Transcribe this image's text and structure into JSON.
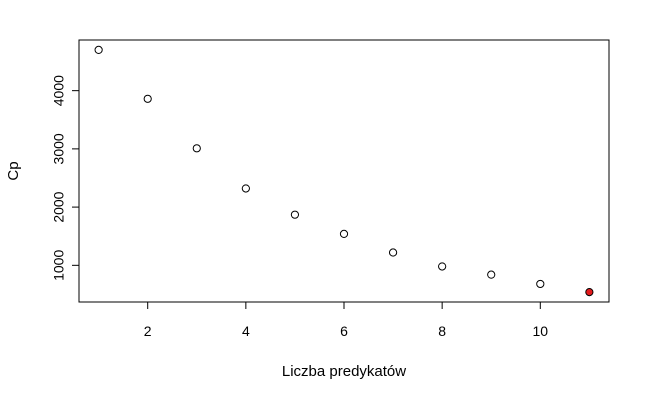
{
  "chart_data": {
    "type": "scatter",
    "title": "",
    "xlabel": "Liczba predykatów",
    "ylabel": "Cp",
    "x": [
      1,
      2,
      3,
      4,
      5,
      6,
      7,
      8,
      9,
      10,
      11
    ],
    "y": [
      4700,
      3860,
      3010,
      2320,
      1870,
      1540,
      1220,
      980,
      840,
      680,
      540
    ],
    "xlim": [
      0.6,
      11.4
    ],
    "ylim": [
      370,
      4870
    ],
    "xticks": [
      2,
      4,
      6,
      8,
      10
    ],
    "yticks": [
      1000,
      2000,
      3000,
      4000
    ],
    "grid": false,
    "highlight": {
      "index": 10,
      "color": "#e41a1c"
    },
    "point_color": "#000000"
  }
}
